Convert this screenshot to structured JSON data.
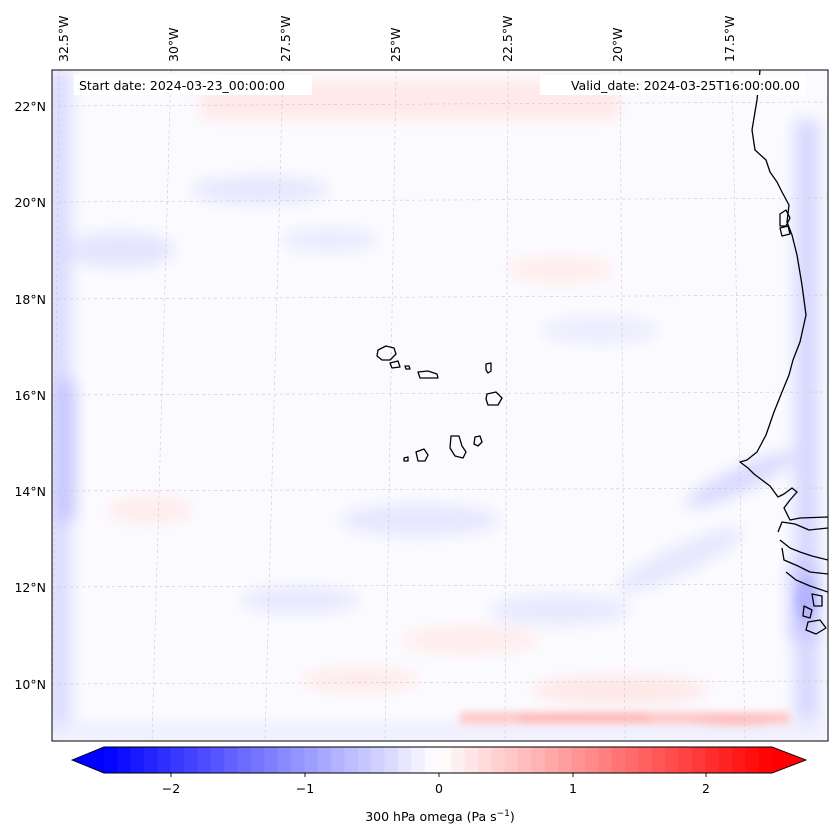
{
  "map": {
    "start_date_text": "Start date: 2024-03-23_00:00:00",
    "valid_date_text": "Valid_date: 2024-03-25T16:00:00.00",
    "lon_labels": [
      "32.5°W",
      "30°W",
      "27.5°W",
      "25°W",
      "22.5°W",
      "20°W",
      "17.5°W"
    ],
    "lat_labels": [
      "22°N",
      "20°N",
      "18°N",
      "16°N",
      "14°N",
      "12°N",
      "10°N"
    ]
  },
  "colorbar": {
    "label_text": "300 hPa omega (Pa s",
    "label_unit_exponent": "−1",
    "label_close": ")",
    "tick_labels": [
      "−2",
      "−1",
      "0",
      "1",
      "2"
    ],
    "colormap": "bwr",
    "range": [
      -2.5,
      2.5
    ],
    "extend": "both",
    "color_min": "#0000ff",
    "color_mid": "#ffffff",
    "color_max": "#ff0000"
  }
}
